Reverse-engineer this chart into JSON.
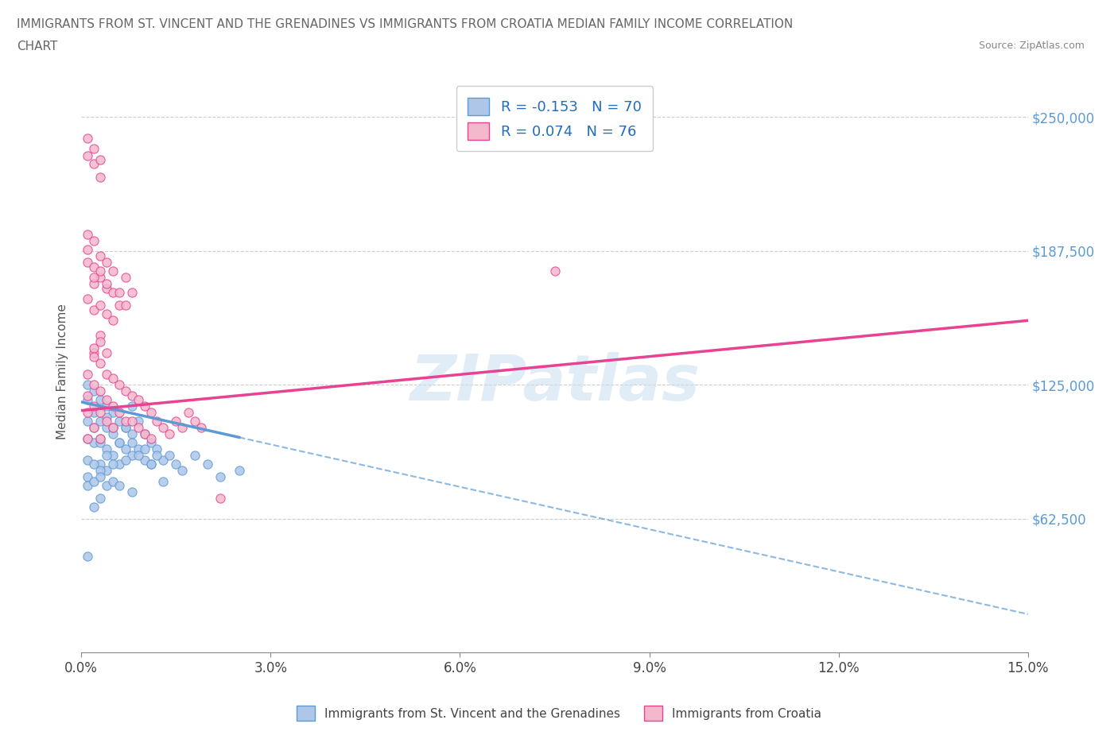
{
  "title_line1": "IMMIGRANTS FROM ST. VINCENT AND THE GRENADINES VS IMMIGRANTS FROM CROATIA MEDIAN FAMILY INCOME CORRELATION",
  "title_line2": "CHART",
  "source_text": "Source: ZipAtlas.com",
  "ylabel": "Median Family Income",
  "watermark": "ZIPatlas",
  "series1_label": "Immigrants from St. Vincent and the Grenadines",
  "series2_label": "Immigrants from Croatia",
  "series1_R": -0.153,
  "series1_N": 70,
  "series2_R": 0.074,
  "series2_N": 76,
  "series1_color": "#aec6e8",
  "series2_color": "#f4b8cc",
  "series1_edge_color": "#5b9bd5",
  "series2_edge_color": "#e84393",
  "series1_line_color": "#5b9bd5",
  "series2_line_color": "#e84393",
  "xlim": [
    0.0,
    0.15
  ],
  "ylim": [
    0,
    262500
  ],
  "yticks": [
    0,
    62500,
    125000,
    187500,
    250000
  ],
  "ytick_labels": [
    "",
    "$62,500",
    "$125,000",
    "$187,500",
    "$250,000"
  ],
  "xticks": [
    0.0,
    0.03,
    0.06,
    0.09,
    0.12,
    0.15
  ],
  "xtick_labels": [
    "0.0%",
    "3.0%",
    "6.0%",
    "9.0%",
    "12.0%",
    "15.0%"
  ],
  "background_color": "#ffffff",
  "grid_color": "#cccccc",
  "trend1_x0": 0.0,
  "trend1_y0": 117000,
  "trend1_x1": 0.15,
  "trend1_y1": 18000,
  "trend2_x0": 0.0,
  "trend2_y0": 113000,
  "trend2_x1": 0.15,
  "trend2_y1": 155000,
  "series1_x": [
    0.001,
    0.001,
    0.001,
    0.001,
    0.002,
    0.002,
    0.002,
    0.003,
    0.003,
    0.003,
    0.003,
    0.004,
    0.004,
    0.004,
    0.004,
    0.005,
    0.005,
    0.005,
    0.006,
    0.006,
    0.006,
    0.007,
    0.007,
    0.008,
    0.008,
    0.008,
    0.009,
    0.009,
    0.01,
    0.01,
    0.011,
    0.011,
    0.012,
    0.013,
    0.013,
    0.014,
    0.015,
    0.016,
    0.018,
    0.02,
    0.022,
    0.025,
    0.001,
    0.002,
    0.002,
    0.003,
    0.003,
    0.004,
    0.004,
    0.005,
    0.005,
    0.006,
    0.007,
    0.007,
    0.008,
    0.009,
    0.01,
    0.011,
    0.012,
    0.001,
    0.001,
    0.002,
    0.003,
    0.004,
    0.005,
    0.006,
    0.003,
    0.002,
    0.001,
    0.008
  ],
  "series1_y": [
    125000,
    118000,
    108000,
    100000,
    122000,
    112000,
    98000,
    118000,
    108000,
    98000,
    88000,
    115000,
    105000,
    95000,
    85000,
    112000,
    102000,
    92000,
    108000,
    98000,
    88000,
    105000,
    95000,
    115000,
    102000,
    92000,
    108000,
    95000,
    102000,
    90000,
    98000,
    88000,
    95000,
    90000,
    80000,
    92000,
    88000,
    85000,
    92000,
    88000,
    82000,
    85000,
    90000,
    105000,
    88000,
    100000,
    85000,
    110000,
    92000,
    105000,
    88000,
    98000,
    105000,
    90000,
    98000,
    92000,
    95000,
    88000,
    92000,
    82000,
    78000,
    80000,
    82000,
    78000,
    80000,
    78000,
    72000,
    68000,
    45000,
    75000
  ],
  "series2_x": [
    0.001,
    0.001,
    0.001,
    0.001,
    0.002,
    0.002,
    0.002,
    0.002,
    0.003,
    0.003,
    0.003,
    0.003,
    0.004,
    0.004,
    0.004,
    0.005,
    0.005,
    0.005,
    0.006,
    0.006,
    0.007,
    0.007,
    0.008,
    0.008,
    0.009,
    0.009,
    0.01,
    0.01,
    0.011,
    0.011,
    0.012,
    0.013,
    0.014,
    0.015,
    0.016,
    0.017,
    0.018,
    0.019,
    0.001,
    0.002,
    0.002,
    0.003,
    0.003,
    0.004,
    0.004,
    0.005,
    0.005,
    0.006,
    0.001,
    0.001,
    0.001,
    0.002,
    0.002,
    0.002,
    0.003,
    0.003,
    0.004,
    0.004,
    0.005,
    0.006,
    0.007,
    0.007,
    0.008,
    0.001,
    0.001,
    0.002,
    0.002,
    0.003,
    0.003,
    0.075,
    0.003,
    0.002,
    0.002,
    0.003,
    0.004,
    0.022
  ],
  "series2_y": [
    130000,
    120000,
    112000,
    100000,
    140000,
    125000,
    115000,
    105000,
    135000,
    122000,
    112000,
    100000,
    130000,
    118000,
    108000,
    128000,
    115000,
    105000,
    125000,
    112000,
    122000,
    108000,
    120000,
    108000,
    118000,
    105000,
    115000,
    102000,
    112000,
    100000,
    108000,
    105000,
    102000,
    108000,
    105000,
    112000,
    108000,
    105000,
    165000,
    172000,
    160000,
    175000,
    162000,
    170000,
    158000,
    168000,
    155000,
    162000,
    188000,
    195000,
    182000,
    192000,
    180000,
    175000,
    185000,
    178000,
    182000,
    172000,
    178000,
    168000,
    175000,
    162000,
    168000,
    240000,
    232000,
    235000,
    228000,
    230000,
    222000,
    178000,
    148000,
    142000,
    138000,
    145000,
    140000,
    72000
  ]
}
